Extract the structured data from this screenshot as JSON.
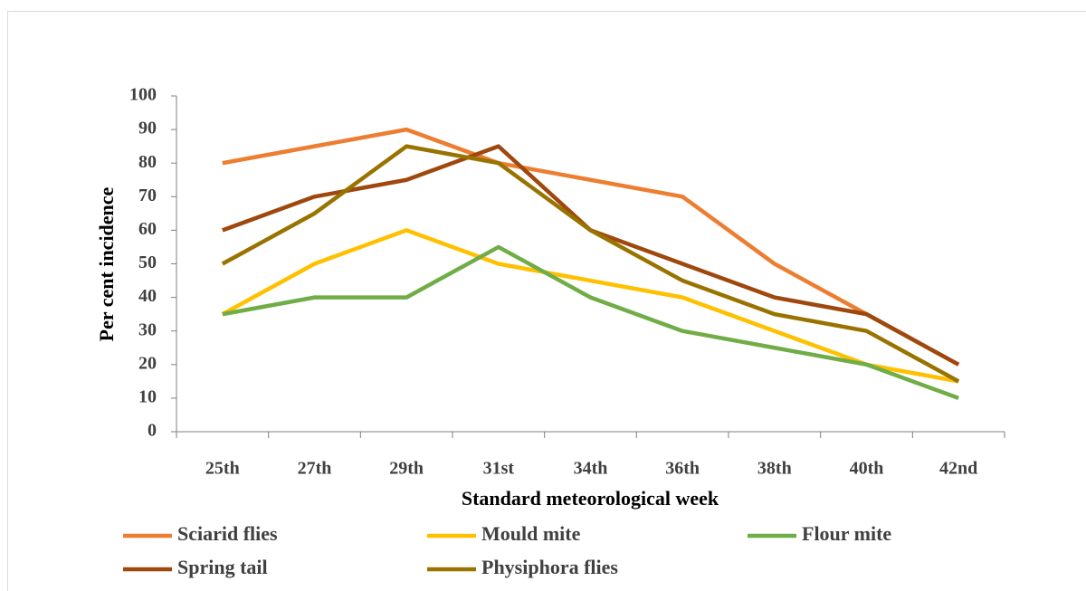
{
  "chart_data": {
    "type": "line",
    "x_label": "Standard meteorological week",
    "y_label": "Per cent incidence",
    "categories": [
      "25th",
      "27th",
      "29th",
      "31st",
      "34th",
      "36th",
      "38th",
      "40th",
      "42nd"
    ],
    "series": [
      {
        "name": "Sciarid flies",
        "color": "#ed7d31",
        "values": [
          80,
          85,
          90,
          80,
          75,
          70,
          50,
          35,
          20
        ]
      },
      {
        "name": "Mould mite",
        "color": "#ffc000",
        "values": [
          35,
          50,
          60,
          50,
          45,
          40,
          30,
          20,
          15
        ]
      },
      {
        "name": "Flour mite",
        "color": "#70ad47",
        "values": [
          35,
          40,
          40,
          55,
          40,
          30,
          25,
          20,
          10
        ]
      },
      {
        "name": "Spring tail",
        "color": "#9e480e",
        "values": [
          60,
          70,
          75,
          85,
          60,
          50,
          40,
          35,
          20
        ]
      },
      {
        "name": "Physiphora flies",
        "color": "#997300",
        "values": [
          50,
          65,
          85,
          80,
          60,
          45,
          35,
          30,
          15
        ]
      }
    ],
    "ylim": [
      0,
      100
    ],
    "yticks": [
      0,
      10,
      20,
      30,
      40,
      50,
      60,
      70,
      80,
      90,
      100
    ],
    "grid": false,
    "legend": "bottom"
  }
}
